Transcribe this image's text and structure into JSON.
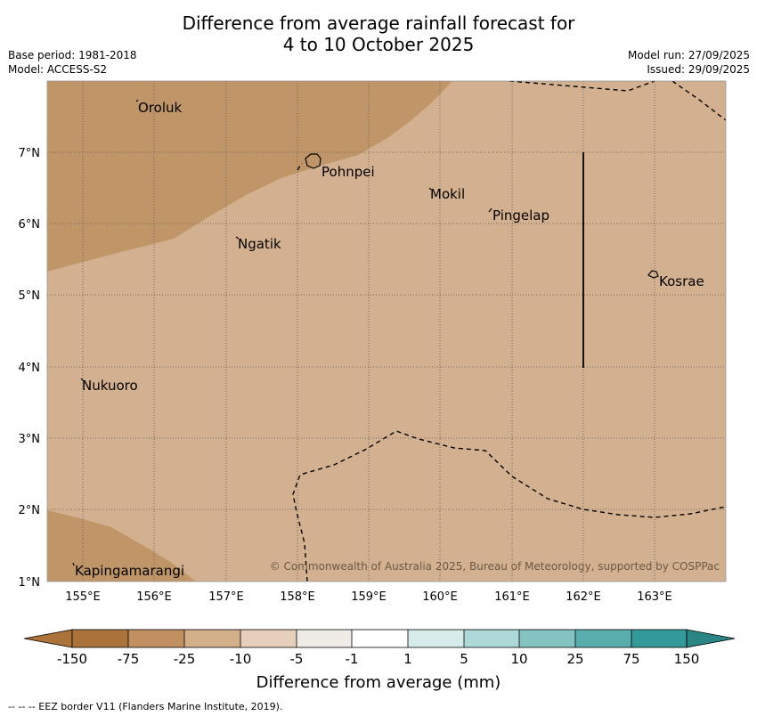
{
  "title": {
    "line1": "Difference from average rainfall forecast for",
    "line2": "4 to 10 October 2025"
  },
  "meta": {
    "base_period": "Base period: 1981-2018",
    "model": "Model: ACCESS-S2",
    "model_run": "Model run: 27/09/2025",
    "issued": "Issued: 29/09/2025"
  },
  "map": {
    "lon_labels": [
      "155°E",
      "156°E",
      "157°E",
      "158°E",
      "159°E",
      "160°E",
      "161°E",
      "162°E",
      "163°E"
    ],
    "lat_labels": [
      "7°N",
      "6°N",
      "5°N",
      "4°N",
      "3°N",
      "2°N",
      "1°N"
    ],
    "islands": [
      "Oroluk",
      "Pohnpei",
      "Mokil",
      "Pingelap",
      "Ngatik",
      "Kosrae",
      "Nukuoro",
      "Kapingamarangi"
    ],
    "copyright": "© Commonwealth of Australia 2025, Bureau of Meteorology, supported by COSPPac"
  },
  "colorbar": {
    "tick_labels": [
      "-150",
      "-75",
      "-25",
      "-10",
      "-5",
      "-1",
      "1",
      "5",
      "10",
      "25",
      "75",
      "150"
    ],
    "colors": [
      "#ab733a",
      "#c09060",
      "#d3b08a",
      "#e6d0bb",
      "#efebe6",
      "#ffffff",
      "#d6ecea",
      "#acd9d7",
      "#83c4c2",
      "#59aead",
      "#349a99",
      "#2a8585"
    ],
    "label": "Difference from average (mm)"
  },
  "legend": {
    "eez_line": "--  --  -- EEZ border V11 (Flanders Marine Institute, 2019)."
  }
}
